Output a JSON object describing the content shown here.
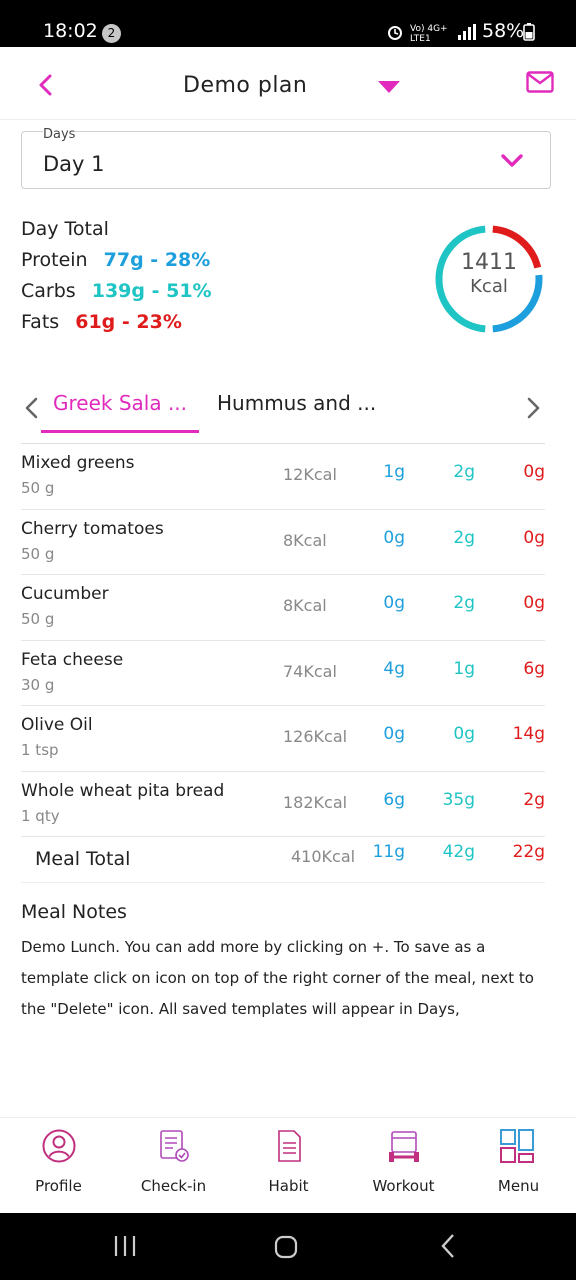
{
  "status_bar": {
    "time": "18:02",
    "notification_count": "2",
    "network": "Vo) 4G+ LTE1",
    "battery": "58%"
  },
  "header": {
    "title": "Demo plan",
    "back_icon": "chevron-left-icon",
    "dropdown_icon": "caret-down-icon",
    "mail_icon": "mail-icon"
  },
  "days": {
    "label": "Days",
    "value": "Day 1"
  },
  "day_total": {
    "label": "Day Total",
    "protein_label": "Protein",
    "protein_value": "77g - 28%",
    "carbs_label": "Carbs",
    "carbs_value": "139g - 51%",
    "fats_label": "Fats",
    "fats_value": "61g - 23%",
    "kcal_value": "1411",
    "kcal_unit": "Kcal",
    "ring_fractions": {
      "protein": 0.28,
      "carbs": 0.51,
      "fats": 0.23
    }
  },
  "colors": {
    "accent": "#e02bbd",
    "protein": "#1e9fdd",
    "carbs": "#1fc4c4",
    "fats": "#e01b1b"
  },
  "meal_tabs": [
    {
      "label": "Greek Sala ...",
      "active": true
    },
    {
      "label": "Hummus and ...",
      "active": false
    }
  ],
  "foods": [
    {
      "name": "Mixed greens",
      "qty": "50 g",
      "kcal": "12Kcal",
      "protein": "1g",
      "carbs": "2g",
      "fats": "0g"
    },
    {
      "name": "Cherry tomatoes",
      "qty": "50 g",
      "kcal": "8Kcal",
      "protein": "0g",
      "carbs": "2g",
      "fats": "0g"
    },
    {
      "name": "Cucumber",
      "qty": "50 g",
      "kcal": "8Kcal",
      "protein": "0g",
      "carbs": "2g",
      "fats": "0g"
    },
    {
      "name": "Feta cheese",
      "qty": "30 g",
      "kcal": "74Kcal",
      "protein": "4g",
      "carbs": "1g",
      "fats": "6g"
    },
    {
      "name": "Olive Oil",
      "qty": "1 tsp",
      "kcal": "126Kcal",
      "protein": "0g",
      "carbs": "0g",
      "fats": "14g"
    },
    {
      "name": "Whole wheat pita bread",
      "qty": "1 qty",
      "kcal": "182Kcal",
      "protein": "6g",
      "carbs": "35g",
      "fats": "2g"
    }
  ],
  "meal_total": {
    "label": "Meal Total",
    "kcal": "410Kcal",
    "protein": "11g",
    "carbs": "42g",
    "fats": "22g"
  },
  "notes": {
    "title": "Meal Notes",
    "text": "Demo Lunch. You can add more by clicking on +. To save as a template click on icon on top of the right corner of the meal, next to the \"Delete\" icon. All saved templates will appear in Days,"
  },
  "bottom_nav": [
    {
      "label": "Profile",
      "icon": "profile-icon"
    },
    {
      "label": "Check-in",
      "icon": "checkin-icon"
    },
    {
      "label": "Habit",
      "icon": "habit-icon"
    },
    {
      "label": "Workout",
      "icon": "workout-icon"
    },
    {
      "label": "Menu",
      "icon": "menu-grid-icon"
    }
  ]
}
